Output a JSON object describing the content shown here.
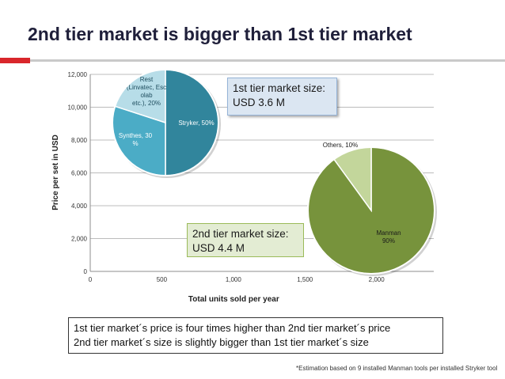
{
  "slide": {
    "title": "2nd tier market is bigger than 1st tier market",
    "callout_1st": {
      "line1": "1st tier market size:",
      "line2": "USD 3.6 M"
    },
    "callout_2nd": {
      "line1": "2nd tier market size:",
      "line2": "USD 4.4 M"
    },
    "notes": [
      "1st tier market´s price is four times higher than 2nd tier market´s price",
      "2nd tier market´s size is slightly bigger than 1st tier market´s size"
    ],
    "footnote": "*Estimation based on 9 installed Manman tools per installed Stryker tool",
    "accent_colors": {
      "red": "#d9262b",
      "grey": "#c9c9c9"
    }
  },
  "chart_data": [
    {
      "type": "scatter",
      "title": "",
      "xlabel": "Total units sold per year",
      "ylabel": "Price per set in USD",
      "xlim": [
        0,
        2400
      ],
      "ylim": [
        0,
        12000
      ],
      "x_ticks": [
        "0",
        "500",
        "1,000",
        "1,500",
        "2,000"
      ],
      "x_tick_values": [
        0,
        500,
        1000,
        1500,
        2000
      ],
      "y_ticks": [
        "0",
        "2,000",
        "4,000",
        "6,000",
        "8,000",
        "10,000",
        "12,000"
      ],
      "y_tick_values": [
        0,
        2000,
        4000,
        6000,
        8000,
        10000,
        12000
      ],
      "grid": "horizontal"
    },
    {
      "type": "pie",
      "market": "1st tier",
      "slices": [
        {
          "label": "Stryker, 50%",
          "value": 50,
          "color": "#31859c"
        },
        {
          "label": "Synthes, 30 %",
          "value": 30,
          "color": "#4bacc6"
        },
        {
          "label": "Rest (Linvatec, Esc olab etc.), 20%",
          "value": 20,
          "color": "#b7dde8"
        }
      ]
    },
    {
      "type": "pie",
      "market": "2nd tier",
      "slices": [
        {
          "label": "Manman 90%",
          "value": 90,
          "color": "#77933c"
        },
        {
          "label": "Others, 10%",
          "value": 10,
          "color": "#c3d69b"
        }
      ]
    }
  ]
}
